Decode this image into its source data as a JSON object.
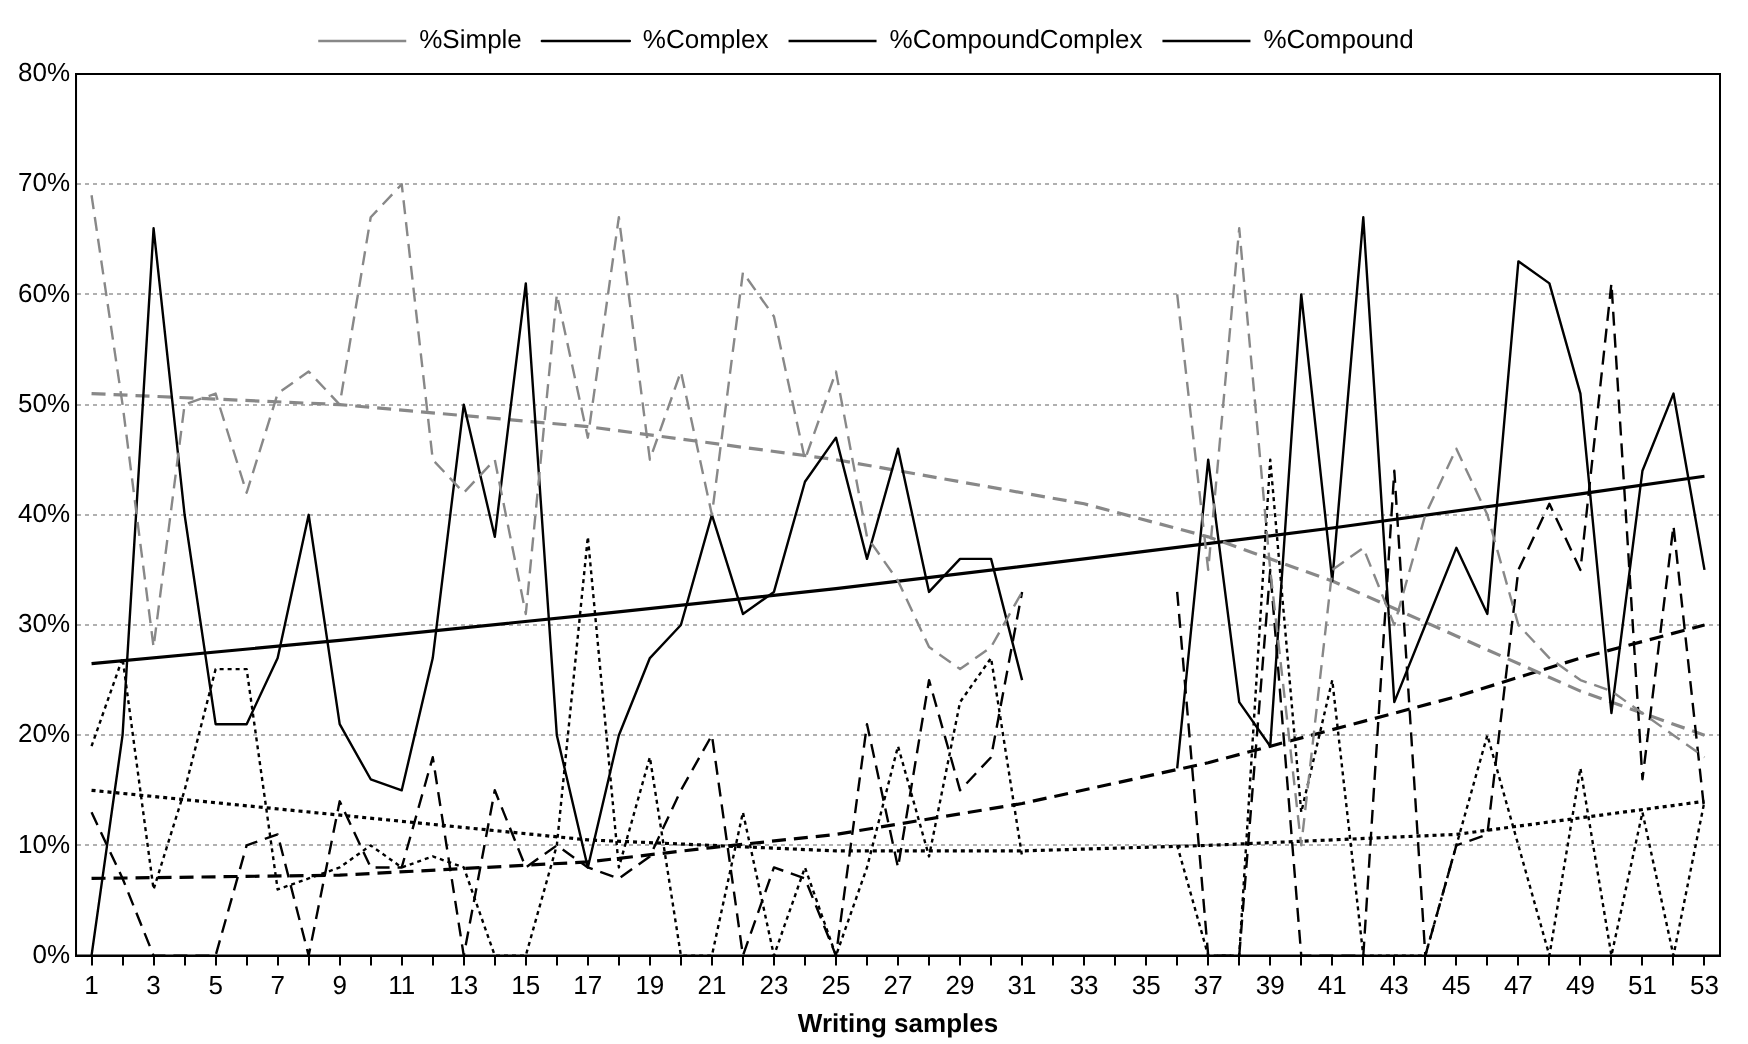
{
  "chart_data": {
    "type": "line",
    "xlabel": "Writing samples",
    "x": [
      1,
      2,
      3,
      4,
      5,
      6,
      7,
      8,
      9,
      10,
      11,
      12,
      13,
      14,
      15,
      16,
      17,
      18,
      19,
      20,
      21,
      22,
      23,
      24,
      25,
      26,
      27,
      28,
      29,
      30,
      31,
      32,
      33,
      34,
      35,
      36,
      37,
      38,
      39,
      40,
      41,
      42,
      43,
      44,
      45,
      46,
      47,
      48,
      49,
      50,
      51,
      52,
      53
    ],
    "xlim": [
      0.5,
      53.5
    ],
    "xticks": [
      1,
      {
        "value": 2,
        "label": null
      },
      3,
      {
        "value": 4,
        "label": null
      },
      5,
      {
        "value": 6,
        "label": null
      },
      7,
      {
        "value": 8,
        "label": null
      },
      9,
      {
        "value": 10,
        "label": null
      },
      11,
      {
        "value": 12,
        "label": null
      },
      13,
      {
        "value": 14,
        "label": null
      },
      15,
      {
        "value": 16,
        "label": null
      },
      17,
      {
        "value": 18,
        "label": null
      },
      19,
      {
        "value": 20,
        "label": null
      },
      21,
      {
        "value": 22,
        "label": null
      },
      23,
      {
        "value": 24,
        "label": null
      },
      25,
      {
        "value": 26,
        "label": null
      },
      27,
      {
        "value": 28,
        "label": null
      },
      29,
      {
        "value": 30,
        "label": null
      },
      31,
      {
        "value": 32,
        "label": null
      },
      33,
      {
        "value": 34,
        "label": null
      },
      35,
      {
        "value": 36,
        "label": null
      },
      37,
      {
        "value": 38,
        "label": null
      },
      39,
      {
        "value": 40,
        "label": null
      },
      41,
      {
        "value": 42,
        "label": null
      },
      43,
      {
        "value": 44,
        "label": null
      },
      45,
      {
        "value": 46,
        "label": null
      },
      47,
      {
        "value": 48,
        "label": null
      },
      49,
      {
        "value": 50,
        "label": null
      },
      51,
      {
        "value": 52,
        "label": null
      },
      53
    ],
    "ylim": [
      0,
      80
    ],
    "yticks": [
      {
        "value": 0,
        "label": "0%"
      },
      {
        "value": 10,
        "label": "10%"
      },
      {
        "value": 20,
        "label": "20%"
      },
      {
        "value": 30,
        "label": "30%"
      },
      {
        "value": 40,
        "label": "40%"
      },
      {
        "value": 50,
        "label": "50%"
      },
      {
        "value": 60,
        "label": "60%"
      },
      {
        "value": 70,
        "label": "70%"
      },
      {
        "value": 80,
        "label": "80%"
      }
    ],
    "grid": "y",
    "legend": "top",
    "marker": "none",
    "series": [
      {
        "name": "%Simple",
        "color": "#888888",
        "line_style": "dashed",
        "values": [
          69,
          50,
          28,
          50,
          51,
          42,
          51,
          53,
          50,
          67,
          70,
          45,
          42,
          45,
          31,
          60,
          47,
          67,
          45,
          53,
          40,
          62,
          58,
          45,
          53,
          38,
          34,
          28,
          26,
          28,
          33,
          null,
          null,
          null,
          null,
          60,
          35,
          66,
          35,
          10,
          35,
          37,
          30,
          40,
          46,
          40,
          30,
          27,
          25,
          24,
          22,
          20,
          18
        ]
      },
      {
        "name": "%Complex",
        "color": "#000000",
        "line_style": "solid",
        "values": [
          0,
          20,
          66,
          40,
          21,
          21,
          27,
          40,
          21,
          16,
          15,
          27,
          50,
          38,
          61,
          20,
          8,
          20,
          27,
          30,
          40,
          31,
          33,
          43,
          47,
          36,
          46,
          33,
          36,
          36,
          25,
          null,
          null,
          null,
          null,
          17,
          45,
          23,
          19,
          60,
          34,
          67,
          23,
          30,
          37,
          31,
          63,
          61,
          51,
          22,
          44,
          51,
          35
        ]
      },
      {
        "name": "%CompoundComplex",
        "color": "#000000",
        "line_style": "dashed",
        "values": [
          13,
          7,
          0,
          0,
          0,
          10,
          11,
          0,
          14,
          8,
          8,
          18,
          0,
          15,
          8,
          10,
          8,
          7,
          9,
          15,
          20,
          0,
          8,
          7,
          0,
          21,
          8,
          25,
          15,
          18,
          33,
          null,
          null,
          null,
          null,
          33,
          0,
          0,
          35,
          0,
          0,
          0,
          44,
          0,
          10,
          11,
          35,
          41,
          35,
          61,
          16,
          39,
          13
        ]
      },
      {
        "name": "%Compound",
        "color": "#000000",
        "line_style": "dotted",
        "values": [
          19,
          27,
          6,
          15,
          26,
          26,
          6,
          7,
          8,
          10,
          8,
          9,
          8,
          0,
          0,
          10,
          38,
          8,
          18,
          0,
          0,
          13,
          0,
          8,
          0,
          8,
          19,
          9,
          23,
          27,
          9,
          null,
          null,
          null,
          null,
          10,
          0,
          0,
          45,
          13,
          25,
          0,
          0,
          0,
          10,
          20,
          10,
          0,
          17,
          0,
          13,
          0,
          14
        ]
      },
      {
        "type": "line",
        "color": "#888888",
        "line_style": "dashed",
        "x": [
          1,
          9,
          17,
          25,
          29,
          33,
          37,
          41,
          45,
          49,
          53
        ],
        "values": [
          51,
          50,
          48,
          45,
          43,
          41,
          38,
          34,
          29,
          24,
          20
        ]
      },
      {
        "type": "line",
        "color": "#000000",
        "line_style": "solid",
        "x": [
          1,
          9,
          17,
          25,
          33,
          41,
          49,
          53
        ],
        "values": [
          26.5,
          28.6,
          30.9,
          33.3,
          36,
          38.8,
          41.9,
          43.5
        ]
      },
      {
        "type": "line",
        "color": "#000000",
        "line_style": "dashed",
        "x": [
          1,
          9,
          17,
          21,
          25,
          31,
          37,
          41,
          45,
          49,
          53
        ],
        "values": [
          7,
          7.3,
          8.5,
          9.8,
          11,
          13.8,
          17.5,
          20.5,
          23.5,
          27,
          30
        ]
      },
      {
        "type": "line",
        "color": "#000000",
        "line_style": "dotted",
        "x": [
          1,
          17,
          25,
          31,
          37,
          45,
          53
        ],
        "values": [
          15,
          10.5,
          9.5,
          9.5,
          10,
          11,
          14
        ]
      }
    ]
  }
}
